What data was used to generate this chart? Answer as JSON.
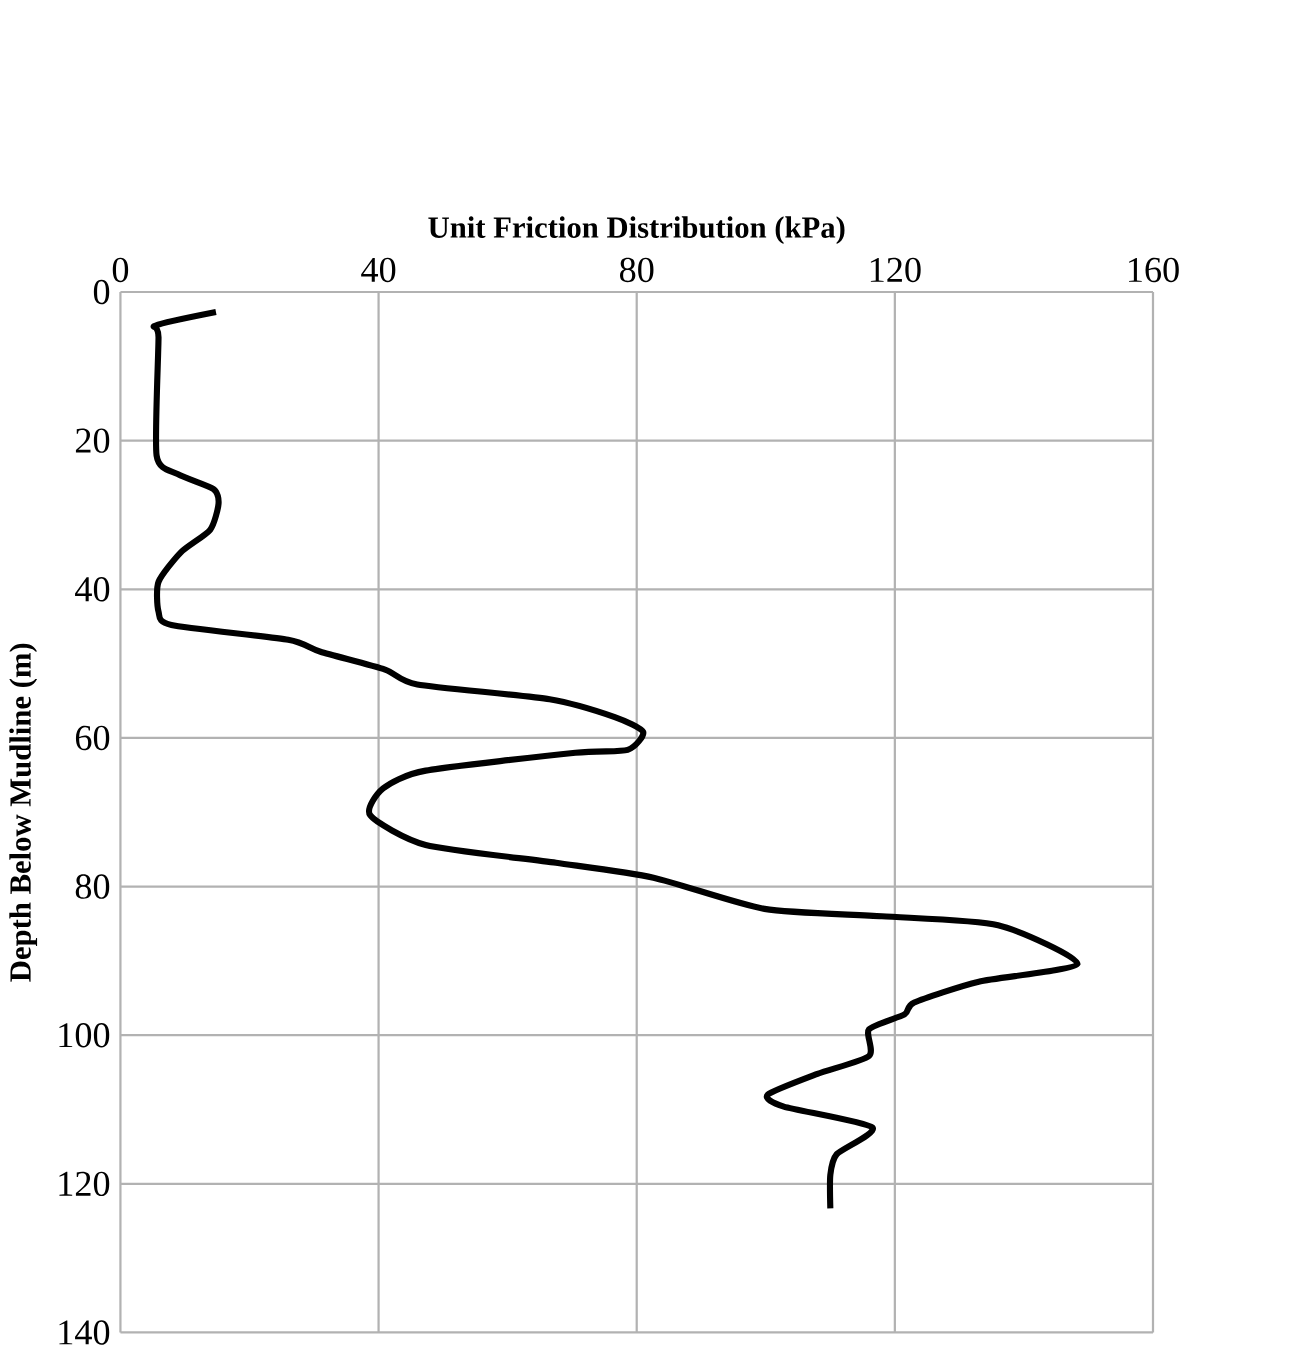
{
  "chart_data": {
    "type": "line",
    "xlabel": "Unit Friction Distribution (kPa)",
    "ylabel": "Depth Below Mudline (m)",
    "xlim": [
      0,
      160
    ],
    "xticks": [
      0,
      40,
      80,
      120,
      160
    ],
    "ylim": [
      140,
      0
    ],
    "yticks": [
      0,
      20,
      40,
      60,
      80,
      100,
      120,
      140
    ],
    "grid": true,
    "series": [
      {
        "color": "#000000",
        "x": [
          14.8,
          5.5,
          5.9,
          5.6,
          8.9,
          14.4,
          15.2,
          13.9,
          9.4,
          5.9,
          5.9,
          7.9,
          26,
          31,
          41,
          46,
          66.5,
          76.6,
          81,
          78.6,
          70.5,
          47.3,
          40.7,
          38.7,
          47.3,
          67.5,
          82.6,
          99.8,
          118,
          136,
          148.3,
          133,
          123,
          121.5,
          116,
          116,
          108,
          100.3,
          102.8,
          116.5,
          111,
          110,
          110
        ],
        "values": [
          2.7,
          4.5,
          6.1,
          22,
          24.5,
          26.5,
          28.5,
          32,
          35,
          39,
          43,
          44.8,
          46.8,
          48.4,
          50.8,
          52.8,
          54.8,
          57.2,
          59.2,
          61.6,
          62,
          64.4,
          66.8,
          70.4,
          74.4,
          76.8,
          78.8,
          83,
          84,
          85.2,
          90.4,
          92.8,
          95.6,
          97.2,
          99.2,
          102.8,
          105.2,
          108,
          109.6,
          112.4,
          116,
          118.8,
          123.3
        ]
      }
    ]
  }
}
